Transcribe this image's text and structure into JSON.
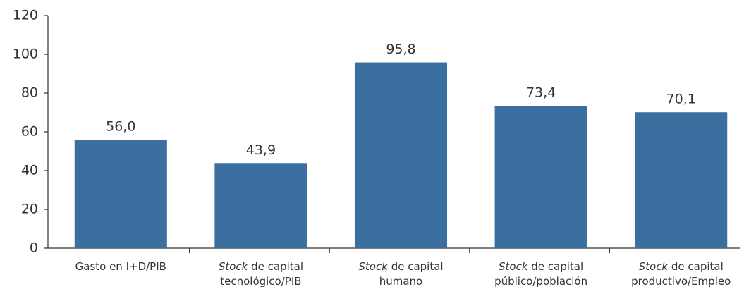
{
  "chart_data": {
    "type": "bar",
    "categories": [
      "Gasto en I+D/PIB",
      "Stock de capital tecnológico/PIB",
      "Stock de capital humano",
      "Stock de capital público/población",
      "Stock de capital productivo/Empleo"
    ],
    "values": [
      56.0,
      43.9,
      95.8,
      73.4,
      70.1
    ],
    "value_labels": [
      "56,0",
      "43,9",
      "95,8",
      "73,4",
      "70,1"
    ],
    "color": "#3b6f9f",
    "ylim": [
      0,
      120
    ],
    "yticks": [
      0,
      20,
      40,
      60,
      80,
      100,
      120
    ],
    "grid": false
  }
}
